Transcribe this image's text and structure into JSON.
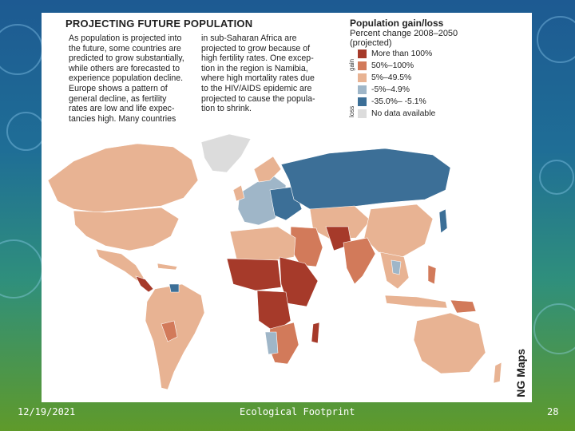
{
  "headline": "PROJECTING FUTURE POPULATION",
  "paragraph_left": "As population is projected into\nthe future, some countries are\npredicted to grow substantially,\nwhile others are forecasted to\nexperience population decline.\nEurope shows a pattern of\ngeneral decline, as fertility\nrates are low and life expec-\ntancies high. Many countries",
  "paragraph_right": "in sub-Saharan Africa are\nprojected to grow because of\nhigh fertility rates. One excep-\ntion in the region is Namibia,\nwhere high mortality rates due\nto the HIV/AIDS epidemic are\nprojected to cause the popula-\ntion to shrink.",
  "legend": {
    "title": "Population gain/loss",
    "subtitle": "Percent change 2008–2050\n(projected)",
    "gain_label": "gain",
    "loss_label": "loss",
    "items": [
      {
        "label": "More than 100%",
        "color": "#a63a2a"
      },
      {
        "label": "50%–100%",
        "color": "#d27a5a"
      },
      {
        "label": "5%–49.5%",
        "color": "#e8b393"
      },
      {
        "label": "-5%–4.9%",
        "color": "#9fb6c8"
      },
      {
        "label": "-35.0%– -5.1%",
        "color": "#3c6f97"
      },
      {
        "label": "No data available",
        "color": "#dcdcdc"
      }
    ]
  },
  "credit": "NG Maps",
  "footer": {
    "date": "12/19/2021",
    "title": "Ecological Footprint",
    "page": "28"
  }
}
